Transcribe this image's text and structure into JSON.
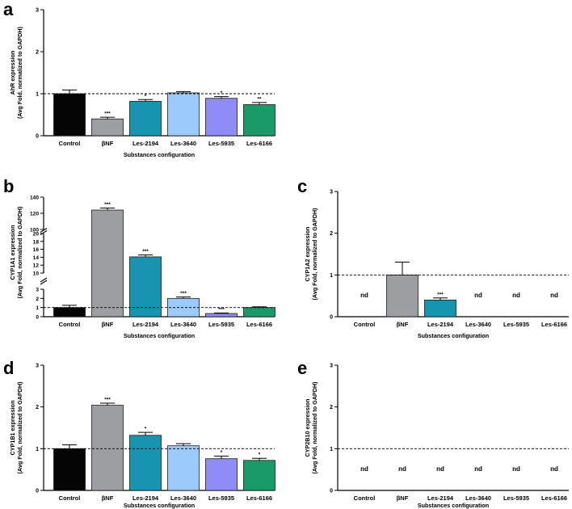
{
  "colors": {
    "Control": "#050505",
    "βNF": "#9d9ea2",
    "Les-2194": "#1795b0",
    "Les-3640": "#9ccafa",
    "Les-5935": "#8f8bf7",
    "Les-6166": "#1a9a68",
    "axis": "#000000",
    "reference_line": "#000000"
  },
  "categories": [
    "Control",
    "βNF",
    "Les-2194",
    "Les-3640",
    "Les-5935",
    "Les-6166"
  ],
  "chart_data": [
    {
      "panel": "a",
      "type": "bar",
      "title": "",
      "ylabel": [
        "AhR expression",
        "(Avg Fold, normalized to GAPDH)"
      ],
      "xlabel": "Substances configuration",
      "ylim": [
        0,
        3
      ],
      "yticks": [
        "0",
        "1",
        "2",
        "3"
      ],
      "reference_line": 1,
      "categories": [
        "Control",
        "βNF",
        "Les-2194",
        "Les-3640",
        "Les-5935",
        "Les-6166"
      ],
      "values": [
        1.0,
        0.4,
        0.82,
        1.02,
        0.89,
        0.74
      ],
      "errors": [
        0.09,
        0.04,
        0.04,
        0.03,
        0.04,
        0.05
      ],
      "significance": [
        "",
        "***",
        "*",
        "",
        "*",
        "**"
      ]
    },
    {
      "panel": "b",
      "type": "bar",
      "title": "",
      "ylabel": [
        "CYP1A1 expression",
        "(Avg Fold, normalized to GAPDH)"
      ],
      "xlabel": "Substances configuration",
      "axis_breaks": true,
      "yticks": [
        "0",
        "1",
        "2",
        "3",
        "10",
        "12",
        "14",
        "16",
        "18",
        "20",
        "100",
        "120",
        "140"
      ],
      "reference_line": 1,
      "categories": [
        "Control",
        "βNF",
        "Les-2194",
        "Les-3640",
        "Les-5935",
        "Les-6166"
      ],
      "values": [
        1.0,
        124,
        14.1,
        2.0,
        0.35,
        1.0
      ],
      "errors": [
        0.25,
        2.5,
        0.5,
        0.15,
        0.06,
        0.08
      ],
      "significance": [
        "",
        "***",
        "***",
        "***",
        "***",
        ""
      ]
    },
    {
      "panel": "c",
      "type": "bar",
      "title": "",
      "ylabel": [
        "CYP1A2 expression",
        "(Avg Fold, normalized to GAPDH)"
      ],
      "xlabel": "Substances configuration",
      "ylim": [
        0,
        3
      ],
      "yticks": [
        "0",
        "1",
        "2",
        "3"
      ],
      "reference_line": 1,
      "categories": [
        "Control",
        "βNF",
        "Les-2194",
        "Les-3640",
        "Les-5935",
        "Les-6166"
      ],
      "values": [
        null,
        1.0,
        0.4,
        null,
        null,
        null
      ],
      "errors": [
        null,
        0.31,
        0.05,
        null,
        null,
        null
      ],
      "significance": [
        "",
        "",
        "***",
        "",
        "",
        ""
      ],
      "not_detected": [
        "nd",
        "",
        "",
        "nd",
        "nd",
        "nd"
      ]
    },
    {
      "panel": "d",
      "type": "bar",
      "title": "",
      "ylabel": [
        "CYP1B1 expression",
        "(Avg Fold, normalized to GAPDH)"
      ],
      "xlabel": "Substances configuration",
      "ylim": [
        0,
        3
      ],
      "yticks": [
        "0",
        "1",
        "2",
        "3"
      ],
      "reference_line": 1,
      "categories": [
        "Control",
        "βNF",
        "Les-2194",
        "Les-3640",
        "Les-5935",
        "Les-6166"
      ],
      "values": [
        1.0,
        2.04,
        1.32,
        1.07,
        0.76,
        0.72
      ],
      "errors": [
        0.09,
        0.05,
        0.07,
        0.05,
        0.06,
        0.05
      ],
      "significance": [
        "",
        "***",
        "*",
        "",
        "*",
        "*"
      ]
    },
    {
      "panel": "e",
      "type": "bar",
      "title": "",
      "ylabel": [
        "CYP2B10 expression",
        "(Avg Fold, normalized to GAPDH)"
      ],
      "xlabel": "Substances configuration",
      "ylim": [
        0,
        3
      ],
      "yticks": [
        "0",
        "1",
        "2",
        "3"
      ],
      "reference_line": 1,
      "categories": [
        "Control",
        "βNF",
        "Les-2194",
        "Les-3640",
        "Les-5935",
        "Les-6166"
      ],
      "values": [
        null,
        null,
        null,
        null,
        null,
        null
      ],
      "errors": [
        null,
        null,
        null,
        null,
        null,
        null
      ],
      "significance": [
        "",
        "",
        "",
        "",
        "",
        ""
      ],
      "not_detected": [
        "nd",
        "nd",
        "nd",
        "nd",
        "nd",
        "nd"
      ]
    }
  ]
}
